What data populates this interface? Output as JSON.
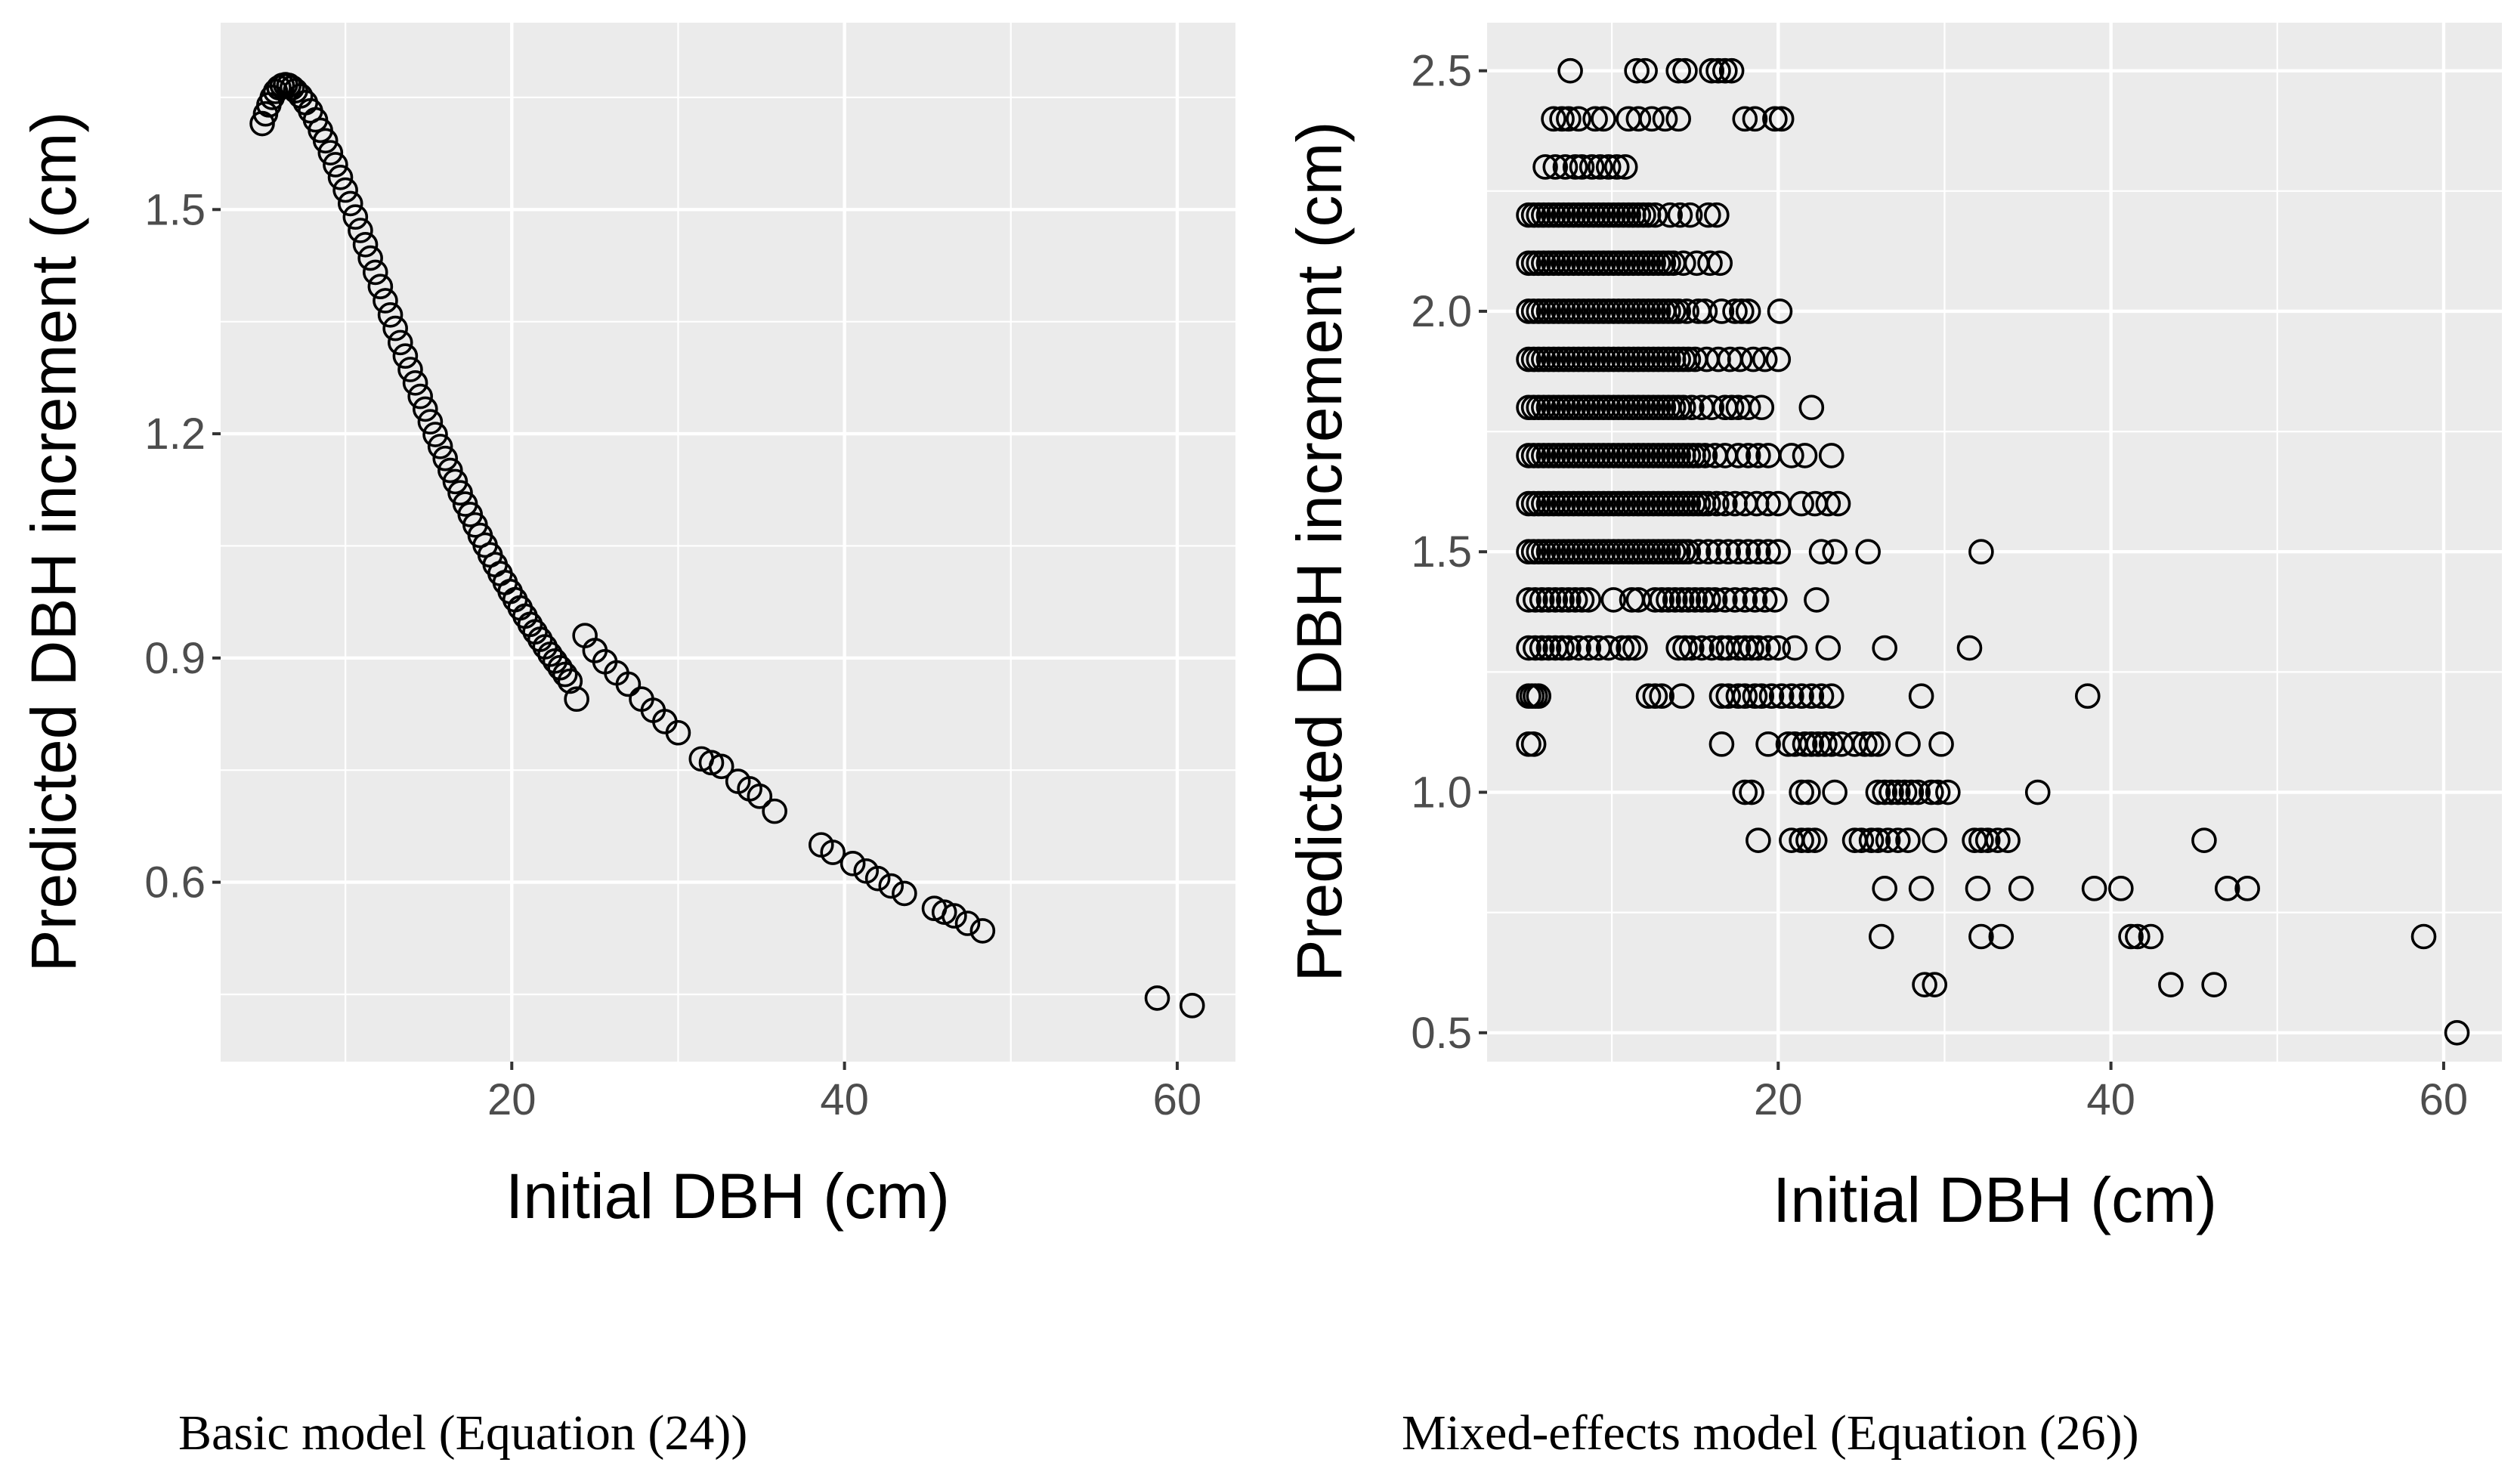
{
  "chart_data": [
    {
      "type": "scatter",
      "panel": "left",
      "xlabel": "Initial DBH (cm)",
      "ylabel": "Predicted DBH increment (cm)",
      "caption": "Basic model (Equation (24))",
      "xlim": [
        2.5,
        63.5
      ],
      "ylim": [
        0.36,
        1.75
      ],
      "x_ticks": [
        20,
        40,
        60
      ],
      "x_tick_labels": [
        "20",
        "40",
        "60"
      ],
      "y_ticks": [
        0.6,
        0.9,
        1.2,
        1.5
      ],
      "y_tick_labels": [
        "0.6",
        "0.9",
        "1.2",
        "1.5"
      ],
      "points": [
        [
          5.0,
          1.615
        ],
        [
          5.2,
          1.628
        ],
        [
          5.4,
          1.64
        ],
        [
          5.6,
          1.65
        ],
        [
          5.8,
          1.658
        ],
        [
          6.0,
          1.663
        ],
        [
          6.2,
          1.666
        ],
        [
          6.4,
          1.667
        ],
        [
          6.6,
          1.666
        ],
        [
          6.8,
          1.663
        ],
        [
          7.0,
          1.659
        ],
        [
          7.3,
          1.652
        ],
        [
          7.6,
          1.643
        ],
        [
          7.9,
          1.632
        ],
        [
          8.2,
          1.62
        ],
        [
          8.5,
          1.606
        ],
        [
          8.8,
          1.592
        ],
        [
          9.1,
          1.576
        ],
        [
          9.4,
          1.56
        ],
        [
          9.7,
          1.543
        ],
        [
          10.0,
          1.526
        ],
        [
          10.3,
          1.508
        ],
        [
          10.6,
          1.49
        ],
        [
          10.9,
          1.472
        ],
        [
          11.2,
          1.453
        ],
        [
          11.5,
          1.435
        ],
        [
          11.8,
          1.416
        ],
        [
          12.1,
          1.397
        ],
        [
          12.4,
          1.378
        ],
        [
          12.7,
          1.359
        ],
        [
          13.0,
          1.341
        ],
        [
          13.3,
          1.322
        ],
        [
          13.6,
          1.304
        ],
        [
          13.9,
          1.286
        ],
        [
          14.2,
          1.268
        ],
        [
          14.5,
          1.25
        ],
        [
          14.8,
          1.233
        ],
        [
          15.1,
          1.216
        ],
        [
          15.4,
          1.199
        ],
        [
          15.7,
          1.183
        ],
        [
          16.0,
          1.167
        ],
        [
          16.3,
          1.151
        ],
        [
          16.6,
          1.136
        ],
        [
          16.9,
          1.121
        ],
        [
          17.2,
          1.106
        ],
        [
          17.5,
          1.092
        ],
        [
          17.8,
          1.078
        ],
        [
          18.1,
          1.064
        ],
        [
          18.4,
          1.051
        ],
        [
          18.7,
          1.038
        ],
        [
          19.0,
          1.025
        ],
        [
          19.3,
          1.013
        ],
        [
          19.6,
          1.001
        ],
        [
          19.9,
          0.989
        ],
        [
          20.2,
          0.978
        ],
        [
          20.5,
          0.967
        ],
        [
          20.8,
          0.956
        ],
        [
          21.1,
          0.945
        ],
        [
          21.4,
          0.935
        ],
        [
          21.7,
          0.925
        ],
        [
          22.0,
          0.915
        ],
        [
          22.3,
          0.905
        ],
        [
          22.6,
          0.896
        ],
        [
          22.9,
          0.887
        ],
        [
          23.2,
          0.878
        ],
        [
          23.5,
          0.869
        ],
        [
          23.9,
          0.845
        ],
        [
          24.4,
          0.93
        ],
        [
          25.0,
          0.91
        ],
        [
          25.6,
          0.895
        ],
        [
          26.3,
          0.88
        ],
        [
          27.0,
          0.865
        ],
        [
          27.8,
          0.845
        ],
        [
          28.5,
          0.83
        ],
        [
          29.2,
          0.815
        ],
        [
          30.0,
          0.8
        ],
        [
          31.4,
          0.765
        ],
        [
          32.0,
          0.76
        ],
        [
          32.6,
          0.755
        ],
        [
          33.6,
          0.735
        ],
        [
          34.3,
          0.725
        ],
        [
          34.9,
          0.715
        ],
        [
          35.8,
          0.695
        ],
        [
          38.6,
          0.65
        ],
        [
          39.3,
          0.64
        ],
        [
          40.5,
          0.625
        ],
        [
          41.3,
          0.615
        ],
        [
          42.0,
          0.605
        ],
        [
          42.8,
          0.595
        ],
        [
          43.6,
          0.585
        ],
        [
          45.4,
          0.565
        ],
        [
          46.0,
          0.56
        ],
        [
          46.6,
          0.555
        ],
        [
          47.4,
          0.545
        ],
        [
          48.3,
          0.535
        ],
        [
          58.8,
          0.445
        ],
        [
          60.9,
          0.435
        ]
      ]
    },
    {
      "type": "scatter",
      "panel": "right",
      "xlabel": "Initial DBH (cm)",
      "ylabel": "Predicted DBH increment (cm)",
      "caption": "Mixed-effects model (Equation (26))",
      "xlim": [
        2.5,
        63.5
      ],
      "ylim": [
        0.44,
        2.6
      ],
      "x_ticks": [
        20,
        40,
        60
      ],
      "x_tick_labels": [
        "20",
        "40",
        "60"
      ],
      "y_ticks": [
        0.5,
        1.0,
        1.5,
        2.0,
        2.5
      ],
      "y_tick_labels": [
        "0.5",
        "1.0",
        "1.5",
        "2.0",
        "2.5"
      ],
      "rows": [
        {
          "y": 2.5,
          "x": [
            7.5,
            11.5,
            12.0,
            14.0,
            14.4,
            16.0,
            16.4,
            16.8,
            17.2
          ]
        },
        {
          "y": 2.4,
          "x": [
            6.5,
            7.0,
            7.4,
            8.0,
            9.0,
            9.5,
            11.0,
            11.6,
            12.4,
            13.2,
            14.0,
            18.0,
            18.6,
            19.8,
            20.2
          ]
        },
        {
          "y": 2.3,
          "x": [
            6.0,
            6.6,
            7.2,
            7.8,
            8.2,
            8.8,
            9.3,
            9.8,
            10.3,
            10.8
          ]
        },
        {
          "y": 2.2,
          "x": [
            5.0,
            5.3,
            5.6,
            5.9,
            6.2,
            6.5,
            6.8,
            7.1,
            7.4,
            7.7,
            8.0,
            8.3,
            8.6,
            8.9,
            9.2,
            9.5,
            9.8,
            10.1,
            10.4,
            10.7,
            11.0,
            11.3,
            11.6,
            11.9,
            12.2,
            12.6,
            13.5,
            14.1,
            14.7,
            15.8,
            16.3
          ]
        },
        {
          "y": 2.1,
          "x": [
            5.0,
            5.3,
            5.6,
            5.9,
            6.2,
            6.5,
            6.8,
            7.1,
            7.4,
            7.7,
            8.0,
            8.3,
            8.6,
            8.9,
            9.2,
            9.5,
            9.8,
            10.1,
            10.4,
            10.7,
            11.0,
            11.3,
            11.6,
            11.9,
            12.2,
            12.5,
            12.8,
            13.1,
            13.4,
            13.7,
            14.3,
            15.1,
            15.9,
            16.5
          ]
        },
        {
          "y": 2.0,
          "x": [
            5.0,
            5.3,
            5.6,
            5.9,
            6.2,
            6.5,
            6.8,
            7.1,
            7.4,
            7.7,
            8.0,
            8.3,
            8.6,
            8.9,
            9.2,
            9.5,
            9.8,
            10.1,
            10.4,
            10.7,
            11.0,
            11.3,
            11.6,
            11.9,
            12.2,
            12.5,
            12.8,
            13.1,
            13.4,
            13.7,
            14.0,
            14.5,
            15.2,
            15.6,
            16.6,
            17.4,
            17.8,
            18.2,
            20.1
          ]
        },
        {
          "y": 1.9,
          "x": [
            5.0,
            5.3,
            5.6,
            5.9,
            6.2,
            6.5,
            6.8,
            7.1,
            7.4,
            7.7,
            8.0,
            8.3,
            8.6,
            8.9,
            9.2,
            9.5,
            9.8,
            10.1,
            10.4,
            10.7,
            11.0,
            11.3,
            11.6,
            11.9,
            12.2,
            12.5,
            12.8,
            13.1,
            13.4,
            13.7,
            14.0,
            14.3,
            14.6,
            15.0,
            15.7,
            16.4,
            17.1,
            17.7,
            18.5,
            19.2,
            20.0
          ]
        },
        {
          "y": 1.8,
          "x": [
            5.0,
            5.3,
            5.6,
            5.9,
            6.2,
            6.5,
            6.8,
            7.1,
            7.4,
            7.7,
            8.0,
            8.3,
            8.6,
            8.9,
            9.2,
            9.5,
            9.8,
            10.1,
            10.4,
            10.7,
            11.0,
            11.3,
            11.6,
            11.9,
            12.2,
            12.5,
            12.8,
            13.1,
            13.4,
            13.7,
            14.0,
            14.3,
            14.8,
            15.4,
            16.0,
            16.8,
            17.2,
            17.6,
            18.2,
            19.0,
            22.0
          ]
        },
        {
          "y": 1.7,
          "x": [
            5.0,
            5.3,
            5.6,
            5.9,
            6.2,
            6.5,
            6.8,
            7.1,
            7.4,
            7.7,
            8.0,
            8.3,
            8.6,
            8.9,
            9.2,
            9.5,
            9.8,
            10.1,
            10.4,
            10.7,
            11.0,
            11.3,
            11.6,
            11.9,
            12.2,
            12.5,
            12.8,
            13.1,
            13.4,
            13.7,
            14.0,
            14.3,
            14.6,
            14.9,
            15.2,
            15.6,
            16.2,
            16.8,
            17.6,
            18.2,
            18.8,
            19.4,
            20.8,
            21.6,
            23.2
          ]
        },
        {
          "y": 1.6,
          "x": [
            5.0,
            5.3,
            5.6,
            5.9,
            6.2,
            6.5,
            6.8,
            7.1,
            7.4,
            7.7,
            8.0,
            8.3,
            8.6,
            8.9,
            9.2,
            9.5,
            9.8,
            10.1,
            10.4,
            10.7,
            11.0,
            11.3,
            11.6,
            11.9,
            12.2,
            12.5,
            12.8,
            13.1,
            13.4,
            13.7,
            14.0,
            14.3,
            14.6,
            14.9,
            15.2,
            15.5,
            15.8,
            16.3,
            16.8,
            17.4,
            18.0,
            18.7,
            19.4,
            20.0,
            21.4,
            22.2,
            23.0,
            23.6
          ]
        },
        {
          "y": 1.5,
          "x": [
            5.0,
            5.3,
            5.6,
            5.9,
            6.2,
            6.5,
            6.8,
            7.1,
            7.4,
            7.7,
            8.0,
            8.3,
            8.6,
            8.9,
            9.2,
            9.5,
            9.8,
            10.1,
            10.4,
            10.7,
            11.0,
            11.3,
            11.6,
            11.9,
            12.2,
            12.5,
            12.8,
            13.1,
            13.4,
            13.7,
            14.0,
            14.3,
            14.6,
            15.2,
            15.8,
            16.4,
            17.0,
            17.6,
            18.2,
            18.8,
            19.4,
            20.0,
            22.6,
            23.4,
            25.4,
            32.2
          ]
        },
        {
          "y": 1.4,
          "x": [
            5.0,
            5.4,
            5.8,
            6.2,
            6.6,
            7.0,
            7.4,
            7.8,
            8.2,
            8.6,
            10.1,
            11.2,
            11.6,
            12.6,
            13.0,
            13.4,
            13.8,
            14.2,
            14.6,
            15.0,
            15.4,
            15.8,
            16.2,
            16.8,
            17.4,
            18.0,
            18.6,
            19.2,
            19.8,
            22.3
          ]
        },
        {
          "y": 1.3,
          "x": [
            5.0,
            5.4,
            5.8,
            6.2,
            6.6,
            7.0,
            7.4,
            8.0,
            8.6,
            9.2,
            9.8,
            10.6,
            11.0,
            11.4,
            14.0,
            14.4,
            14.8,
            15.4,
            16.0,
            16.6,
            17.0,
            17.6,
            18.0,
            18.4,
            18.8,
            19.4,
            20.0,
            21.0,
            23.0,
            26.4,
            31.5
          ]
        },
        {
          "y": 1.2,
          "x": [
            5.0,
            5.2,
            5.4,
            5.6,
            12.2,
            12.6,
            13.0,
            14.2,
            16.6,
            17.0,
            17.6,
            18.0,
            18.6,
            19.0,
            19.6,
            20.2,
            20.8,
            21.4,
            22.0,
            22.6,
            23.2,
            28.6,
            38.6
          ]
        },
        {
          "y": 1.1,
          "x": [
            5.0,
            5.3,
            16.6,
            19.4,
            20.6,
            21.0,
            21.6,
            22.0,
            22.4,
            22.8,
            23.2,
            23.8,
            24.6,
            25.2,
            25.6,
            26.0,
            27.8,
            29.8
          ]
        },
        {
          "y": 1.0,
          "x": [
            18.0,
            18.4,
            21.4,
            21.8,
            23.4,
            26.0,
            26.4,
            26.8,
            27.2,
            27.6,
            28.0,
            28.4,
            29.2,
            29.6,
            30.2,
            35.6
          ]
        },
        {
          "y": 0.9,
          "x": [
            18.8,
            20.8,
            21.4,
            21.8,
            22.2,
            24.6,
            25.0,
            25.6,
            26.0,
            26.6,
            27.2,
            27.8,
            29.4,
            31.8,
            32.2,
            32.6,
            33.2,
            33.8,
            45.6
          ]
        },
        {
          "y": 0.8,
          "x": [
            26.4,
            28.6,
            32.0,
            34.6,
            39.0,
            40.6,
            47.0,
            48.2
          ]
        },
        {
          "y": 0.7,
          "x": [
            26.2,
            32.2,
            33.4,
            41.2,
            41.6,
            42.4,
            58.8
          ]
        },
        {
          "y": 0.6,
          "x": [
            28.8,
            29.4,
            43.6,
            46.2
          ]
        },
        {
          "y": 0.5,
          "x": [
            60.8
          ]
        }
      ]
    }
  ]
}
